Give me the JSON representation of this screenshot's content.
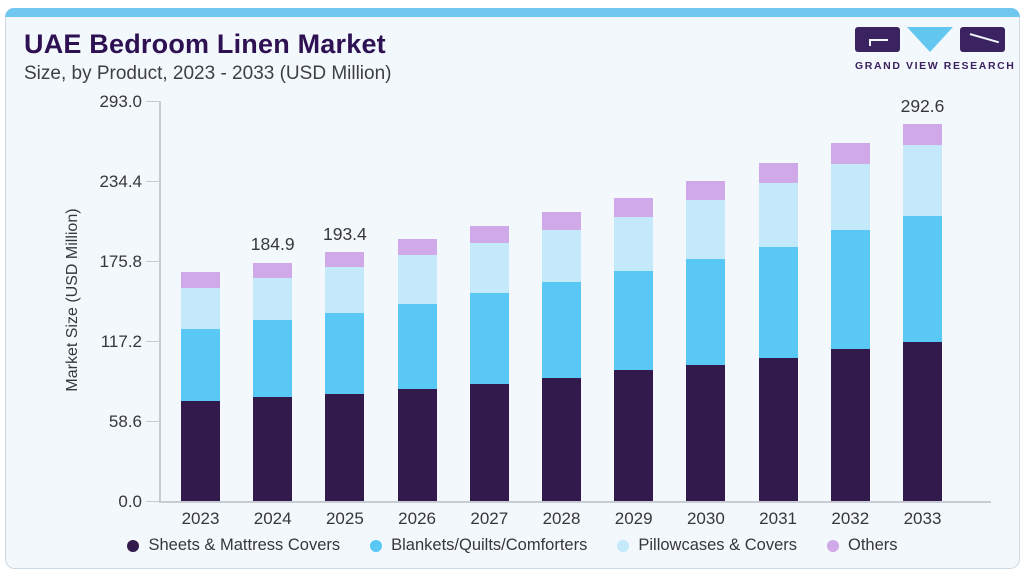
{
  "header": {
    "title": "UAE Bedroom Linen Market",
    "subtitle": "Size, by Product, 2023 - 2033 (USD Million)"
  },
  "logo": {
    "text": "GRAND VIEW RESEARCH"
  },
  "colors": {
    "accent_bar": "#72c7f0",
    "card_background": "#f3f8fc",
    "title_purple": "#2e1153",
    "logo_purple": "#3b2260",
    "logo_blue": "#62c8f0",
    "axis_gray": "#c7ccd4",
    "text_gray": "#36373c"
  },
  "chart_data": {
    "type": "bar",
    "stacked": true,
    "title": "UAE Bedroom Linen Market Size, by Product, 2023 - 2033 (USD Million)",
    "xlabel": "",
    "ylabel": "Market Size (USD Million)",
    "ylim": [
      0,
      293.0
    ],
    "y_ticks": [
      "293.0",
      "234.4",
      "175.8",
      "117.2",
      "58.6",
      "0.0"
    ],
    "grid": false,
    "legend_position": "bottom",
    "categories": [
      "2023",
      "2024",
      "2025",
      "2026",
      "2027",
      "2028",
      "2029",
      "2030",
      "2031",
      "2032",
      "2033"
    ],
    "series": [
      {
        "name": "Sheets & Mattress Covers",
        "color": "#321b4c",
        "values": [
          77.3,
          80.9,
          83.3,
          86.9,
          90.9,
          95.6,
          101.3,
          105.4,
          111.1,
          117.6,
          123.5
        ]
      },
      {
        "name": "Blankets/Quilts/Comforters",
        "color": "#5ac8f5",
        "values": [
          55.8,
          59.2,
          62.8,
          66.2,
          70.6,
          74.2,
          77.0,
          82.0,
          86.1,
          92.5,
          97.8
        ]
      },
      {
        "name": "Pillowcases & Covers",
        "color": "#c4e9fb",
        "values": [
          32.2,
          33.0,
          35.3,
          37.3,
          38.8,
          40.3,
          42.1,
          45.9,
          49.5,
          51.1,
          54.6
        ]
      },
      {
        "name": "Others",
        "color": "#d0a9e9",
        "values": [
          12.2,
          11.8,
          12.0,
          12.5,
          12.9,
          13.9,
          14.3,
          14.8,
          15.5,
          16.3,
          16.7
        ]
      }
    ],
    "bar_total_labels": [
      {
        "category_index": 1,
        "text": "184.9"
      },
      {
        "category_index": 2,
        "text": "193.4"
      },
      {
        "category_index": 10,
        "text": "292.6"
      }
    ]
  }
}
